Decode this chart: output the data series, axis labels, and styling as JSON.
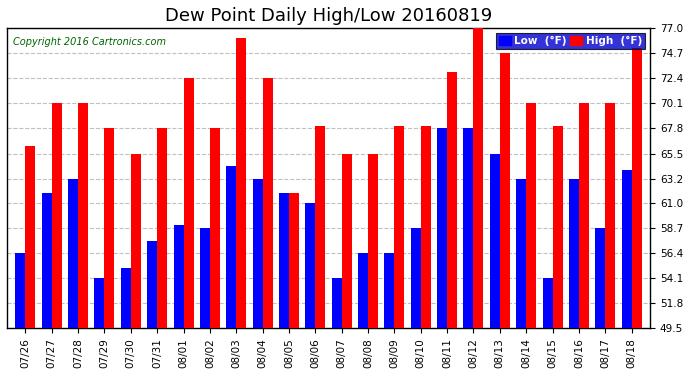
{
  "title": "Dew Point Daily High/Low 20160819",
  "copyright": "Copyright 2016 Cartronics.com",
  "background_color": "#ffffff",
  "plot_bg_color": "#ffffff",
  "grid_color": "#c0c0c0",
  "ylim": [
    49.5,
    77.0
  ],
  "yticks": [
    49.5,
    51.8,
    54.1,
    56.4,
    58.7,
    61.0,
    63.2,
    65.5,
    67.8,
    70.1,
    72.4,
    74.7,
    77.0
  ],
  "dates": [
    "07/26",
    "07/27",
    "07/28",
    "07/29",
    "07/30",
    "07/31",
    "08/01",
    "08/02",
    "08/03",
    "08/04",
    "08/05",
    "08/06",
    "08/07",
    "08/08",
    "08/09",
    "08/10",
    "08/11",
    "08/12",
    "08/13",
    "08/14",
    "08/15",
    "08/16",
    "08/17",
    "08/18"
  ],
  "low": [
    56.4,
    61.9,
    63.2,
    54.1,
    55.0,
    57.5,
    59.0,
    58.7,
    64.4,
    63.2,
    61.9,
    61.0,
    54.1,
    56.4,
    56.4,
    58.7,
    67.8,
    67.8,
    65.5,
    63.2,
    54.1,
    63.2,
    58.7,
    64.0
  ],
  "high": [
    66.2,
    70.1,
    70.1,
    67.8,
    65.5,
    67.8,
    72.4,
    67.8,
    76.1,
    72.4,
    61.9,
    68.0,
    65.5,
    65.5,
    68.0,
    68.0,
    73.0,
    77.0,
    74.7,
    70.1,
    68.0,
    70.1,
    70.1,
    75.2
  ],
  "low_color": "#0000ff",
  "high_color": "#ff0000",
  "bar_width": 0.38,
  "title_fontsize": 13,
  "tick_fontsize": 7.5,
  "copyright_fontsize": 7,
  "legend_low_label": "Low  (°F)",
  "legend_high_label": "High  (°F)",
  "ybase": 49.5
}
